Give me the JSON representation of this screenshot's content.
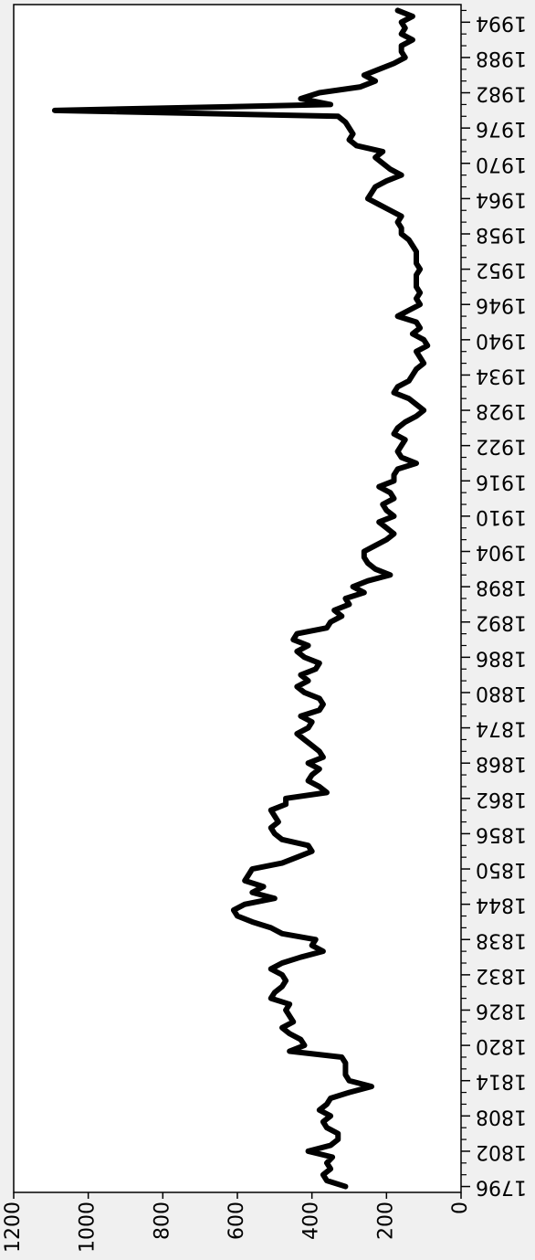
{
  "chart_data": {
    "type": "line",
    "x": [
      1796,
      1797,
      1798,
      1799,
      1800,
      1801,
      1802,
      1803,
      1804,
      1805,
      1806,
      1807,
      1808,
      1809,
      1810,
      1811,
      1812,
      1813,
      1814,
      1815,
      1816,
      1817,
      1818,
      1819,
      1820,
      1821,
      1822,
      1823,
      1824,
      1825,
      1826,
      1827,
      1828,
      1829,
      1830,
      1831,
      1832,
      1833,
      1834,
      1835,
      1836,
      1837,
      1838,
      1839,
      1840,
      1841,
      1842,
      1843,
      1844,
      1845,
      1846,
      1847,
      1848,
      1849,
      1850,
      1851,
      1852,
      1853,
      1854,
      1855,
      1856,
      1857,
      1858,
      1859,
      1860,
      1861,
      1862,
      1863,
      1864,
      1865,
      1866,
      1867,
      1868,
      1869,
      1870,
      1871,
      1872,
      1873,
      1874,
      1875,
      1876,
      1877,
      1878,
      1879,
      1880,
      1881,
      1882,
      1883,
      1884,
      1885,
      1886,
      1887,
      1888,
      1889,
      1890,
      1891,
      1892,
      1893,
      1894,
      1895,
      1896,
      1897,
      1898,
      1899,
      1900,
      1901,
      1902,
      1903,
      1904,
      1905,
      1906,
      1907,
      1908,
      1909,
      1910,
      1911,
      1912,
      1913,
      1914,
      1915,
      1916,
      1917,
      1918,
      1919,
      1920,
      1921,
      1922,
      1923,
      1924,
      1925,
      1926,
      1927,
      1928,
      1929,
      1930,
      1931,
      1932,
      1933,
      1934,
      1935,
      1936,
      1937,
      1938,
      1939,
      1940,
      1941,
      1942,
      1943,
      1944,
      1945,
      1946,
      1947,
      1948,
      1949,
      1950,
      1951,
      1952,
      1953,
      1954,
      1955,
      1956,
      1957,
      1958,
      1959,
      1960,
      1961,
      1962,
      1963,
      1964,
      1965,
      1966,
      1967,
      1968,
      1969,
      1970,
      1971,
      1972,
      1973,
      1974,
      1975,
      1976,
      1977,
      1978,
      1979,
      1980,
      1981,
      1982,
      1983,
      1984,
      1985,
      1986,
      1987,
      1988,
      1989,
      1990,
      1991,
      1992,
      1993,
      1994,
      1995,
      1996
    ],
    "values": [
      310,
      360,
      370,
      350,
      360,
      345,
      410,
      350,
      330,
      330,
      360,
      370,
      350,
      380,
      360,
      350,
      300,
      240,
      300,
      310,
      310,
      310,
      320,
      460,
      420,
      430,
      460,
      480,
      450,
      460,
      470,
      460,
      510,
      500,
      480,
      470,
      480,
      510,
      480,
      430,
      370,
      400,
      390,
      480,
      510,
      560,
      600,
      610,
      580,
      500,
      560,
      530,
      580,
      570,
      560,
      480,
      440,
      400,
      410,
      480,
      500,
      510,
      490,
      500,
      510,
      470,
      470,
      360,
      380,
      410,
      400,
      380,
      410,
      370,
      380,
      400,
      420,
      440,
      410,
      400,
      430,
      380,
      370,
      380,
      420,
      440,
      410,
      430,
      390,
      380,
      420,
      440,
      410,
      450,
      440,
      360,
      350,
      320,
      340,
      300,
      310,
      260,
      290,
      250,
      190,
      230,
      250,
      260,
      260,
      230,
      200,
      180,
      200,
      220,
      180,
      200,
      210,
      180,
      190,
      220,
      180,
      180,
      170,
      120,
      160,
      170,
      160,
      150,
      180,
      170,
      150,
      120,
      100,
      120,
      140,
      180,
      170,
      140,
      130,
      120,
      100,
      110,
      120,
      90,
      100,
      130,
      110,
      120,
      170,
      140,
      110,
      120,
      110,
      120,
      120,
      120,
      110,
      120,
      120,
      120,
      130,
      140,
      160,
      160,
      170,
      160,
      190,
      220,
      250,
      240,
      230,
      200,
      160,
      190,
      210,
      230,
      210,
      280,
      300,
      290,
      300,
      310,
      330,
      1090,
      350,
      430,
      380,
      270,
      230,
      260,
      220,
      180,
      150,
      160,
      160,
      130,
      160,
      150,
      160,
      130,
      170
    ],
    "color": "#000000",
    "xlim": [
      1795,
      1997
    ],
    "xticks": [
      1796,
      1802,
      1808,
      1814,
      1820,
      1826,
      1832,
      1838,
      1844,
      1850,
      1856,
      1862,
      1868,
      1874,
      1880,
      1886,
      1892,
      1898,
      1904,
      1910,
      1916,
      1922,
      1928,
      1934,
      1940,
      1946,
      1952,
      1958,
      1964,
      1970,
      1976,
      1982,
      1988,
      1994
    ],
    "xminorticks": [
      1798,
      1800,
      1804,
      1806,
      1810,
      1812,
      1816,
      1818,
      1822,
      1824,
      1828,
      1830,
      1834,
      1836,
      1840,
      1842,
      1846,
      1848,
      1852,
      1854,
      1858,
      1860,
      1864,
      1866,
      1870,
      1872,
      1876,
      1878,
      1882,
      1884,
      1888,
      1890,
      1894,
      1896,
      1900,
      1902,
      1906,
      1908,
      1912,
      1914,
      1918,
      1920,
      1924,
      1926,
      1930,
      1932,
      1936,
      1938,
      1942,
      1944,
      1948,
      1950,
      1954,
      1956,
      1960,
      1962,
      1966,
      1968,
      1972,
      1974,
      1978,
      1980,
      1984,
      1986,
      1990,
      1992,
      1996
    ],
    "ylim": [
      0,
      1200
    ],
    "yticks": [
      0,
      200,
      400,
      600,
      800,
      1000,
      1200
    ]
  }
}
